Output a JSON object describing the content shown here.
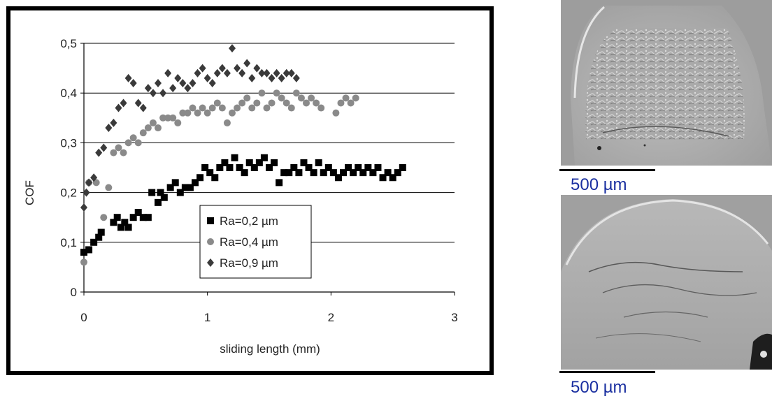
{
  "chart_data": {
    "type": "scatter",
    "xlabel": "sliding length (mm)",
    "ylabel": "COF",
    "xlim": [
      0,
      3
    ],
    "ylim": [
      0,
      0.5
    ],
    "x_ticks": [
      "0",
      "1",
      "2",
      "3"
    ],
    "y_ticks": [
      "0",
      "0,1",
      "0,2",
      "0,3",
      "0,4",
      "0,5"
    ],
    "grid": "horizontal",
    "legend_position": "lower-middle",
    "series": [
      {
        "name": "Ra=0,2 µm",
        "marker": "square",
        "color": "#000000",
        "points": [
          [
            0.0,
            0.08
          ],
          [
            0.04,
            0.085
          ],
          [
            0.08,
            0.1
          ],
          [
            0.12,
            0.11
          ],
          [
            0.14,
            0.12
          ],
          [
            0.24,
            0.14
          ],
          [
            0.27,
            0.15
          ],
          [
            0.3,
            0.13
          ],
          [
            0.33,
            0.14
          ],
          [
            0.36,
            0.13
          ],
          [
            0.4,
            0.15
          ],
          [
            0.44,
            0.16
          ],
          [
            0.48,
            0.15
          ],
          [
            0.52,
            0.15
          ],
          [
            0.55,
            0.2
          ],
          [
            0.6,
            0.18
          ],
          [
            0.62,
            0.2
          ],
          [
            0.65,
            0.19
          ],
          [
            0.7,
            0.21
          ],
          [
            0.74,
            0.22
          ],
          [
            0.78,
            0.2
          ],
          [
            0.82,
            0.21
          ],
          [
            0.86,
            0.21
          ],
          [
            0.9,
            0.22
          ],
          [
            0.94,
            0.23
          ],
          [
            0.98,
            0.25
          ],
          [
            1.02,
            0.24
          ],
          [
            1.06,
            0.23
          ],
          [
            1.1,
            0.25
          ],
          [
            1.14,
            0.26
          ],
          [
            1.18,
            0.25
          ],
          [
            1.22,
            0.27
          ],
          [
            1.26,
            0.25
          ],
          [
            1.3,
            0.24
          ],
          [
            1.34,
            0.26
          ],
          [
            1.38,
            0.25
          ],
          [
            1.42,
            0.26
          ],
          [
            1.46,
            0.27
          ],
          [
            1.5,
            0.25
          ],
          [
            1.54,
            0.26
          ],
          [
            1.58,
            0.22
          ],
          [
            1.62,
            0.24
          ],
          [
            1.66,
            0.24
          ],
          [
            1.7,
            0.25
          ],
          [
            1.74,
            0.24
          ],
          [
            1.78,
            0.26
          ],
          [
            1.82,
            0.25
          ],
          [
            1.86,
            0.24
          ],
          [
            1.9,
            0.26
          ],
          [
            1.94,
            0.24
          ],
          [
            1.98,
            0.25
          ],
          [
            2.02,
            0.24
          ],
          [
            2.06,
            0.23
          ],
          [
            2.1,
            0.24
          ],
          [
            2.14,
            0.25
          ],
          [
            2.18,
            0.24
          ],
          [
            2.22,
            0.25
          ],
          [
            2.26,
            0.24
          ],
          [
            2.3,
            0.25
          ],
          [
            2.34,
            0.24
          ],
          [
            2.38,
            0.25
          ],
          [
            2.42,
            0.23
          ],
          [
            2.46,
            0.24
          ],
          [
            2.5,
            0.23
          ],
          [
            2.54,
            0.24
          ],
          [
            2.58,
            0.25
          ]
        ]
      },
      {
        "name": "Ra=0,4 µm",
        "marker": "circle",
        "color": "#8a8a8a",
        "points": [
          [
            0.0,
            0.06
          ],
          [
            0.04,
            0.22
          ],
          [
            0.1,
            0.22
          ],
          [
            0.16,
            0.15
          ],
          [
            0.2,
            0.21
          ],
          [
            0.24,
            0.28
          ],
          [
            0.28,
            0.29
          ],
          [
            0.32,
            0.28
          ],
          [
            0.36,
            0.3
          ],
          [
            0.4,
            0.31
          ],
          [
            0.44,
            0.3
          ],
          [
            0.48,
            0.32
          ],
          [
            0.52,
            0.33
          ],
          [
            0.56,
            0.34
          ],
          [
            0.6,
            0.33
          ],
          [
            0.64,
            0.35
          ],
          [
            0.68,
            0.35
          ],
          [
            0.72,
            0.35
          ],
          [
            0.76,
            0.34
          ],
          [
            0.8,
            0.36
          ],
          [
            0.84,
            0.36
          ],
          [
            0.88,
            0.37
          ],
          [
            0.92,
            0.36
          ],
          [
            0.96,
            0.37
          ],
          [
            1.0,
            0.36
          ],
          [
            1.04,
            0.37
          ],
          [
            1.08,
            0.38
          ],
          [
            1.12,
            0.37
          ],
          [
            1.16,
            0.34
          ],
          [
            1.2,
            0.36
          ],
          [
            1.24,
            0.37
          ],
          [
            1.28,
            0.38
          ],
          [
            1.32,
            0.39
          ],
          [
            1.36,
            0.37
          ],
          [
            1.4,
            0.38
          ],
          [
            1.44,
            0.4
          ],
          [
            1.48,
            0.37
          ],
          [
            1.52,
            0.38
          ],
          [
            1.56,
            0.4
          ],
          [
            1.6,
            0.39
          ],
          [
            1.64,
            0.38
          ],
          [
            1.68,
            0.37
          ],
          [
            1.72,
            0.4
          ],
          [
            1.76,
            0.39
          ],
          [
            1.8,
            0.38
          ],
          [
            1.84,
            0.39
          ],
          [
            1.88,
            0.38
          ],
          [
            1.92,
            0.37
          ],
          [
            2.04,
            0.36
          ],
          [
            2.08,
            0.38
          ],
          [
            2.12,
            0.39
          ],
          [
            2.16,
            0.38
          ],
          [
            2.2,
            0.39
          ]
        ]
      },
      {
        "name": "Ra=0,9 µm",
        "marker": "diamond",
        "color": "#3a3a3a",
        "points": [
          [
            0.0,
            0.17
          ],
          [
            0.02,
            0.2
          ],
          [
            0.04,
            0.22
          ],
          [
            0.08,
            0.23
          ],
          [
            0.12,
            0.28
          ],
          [
            0.16,
            0.29
          ],
          [
            0.2,
            0.33
          ],
          [
            0.24,
            0.34
          ],
          [
            0.28,
            0.37
          ],
          [
            0.32,
            0.38
          ],
          [
            0.36,
            0.43
          ],
          [
            0.4,
            0.42
          ],
          [
            0.44,
            0.38
          ],
          [
            0.48,
            0.37
          ],
          [
            0.52,
            0.41
          ],
          [
            0.56,
            0.4
          ],
          [
            0.6,
            0.42
          ],
          [
            0.64,
            0.4
          ],
          [
            0.68,
            0.44
          ],
          [
            0.72,
            0.41
          ],
          [
            0.76,
            0.43
          ],
          [
            0.8,
            0.42
          ],
          [
            0.84,
            0.41
          ],
          [
            0.88,
            0.42
          ],
          [
            0.92,
            0.44
          ],
          [
            0.96,
            0.45
          ],
          [
            1.0,
            0.43
          ],
          [
            1.04,
            0.42
          ],
          [
            1.08,
            0.44
          ],
          [
            1.12,
            0.45
          ],
          [
            1.16,
            0.44
          ],
          [
            1.2,
            0.49
          ],
          [
            1.24,
            0.45
          ],
          [
            1.28,
            0.44
          ],
          [
            1.32,
            0.46
          ],
          [
            1.36,
            0.43
          ],
          [
            1.4,
            0.45
          ],
          [
            1.44,
            0.44
          ],
          [
            1.48,
            0.44
          ],
          [
            1.52,
            0.43
          ],
          [
            1.56,
            0.44
          ],
          [
            1.6,
            0.43
          ],
          [
            1.64,
            0.44
          ],
          [
            1.68,
            0.44
          ],
          [
            1.72,
            0.43
          ]
        ]
      }
    ]
  },
  "images": [
    {
      "scale_label": "500 µm"
    },
    {
      "scale_label": "500 µm"
    }
  ]
}
